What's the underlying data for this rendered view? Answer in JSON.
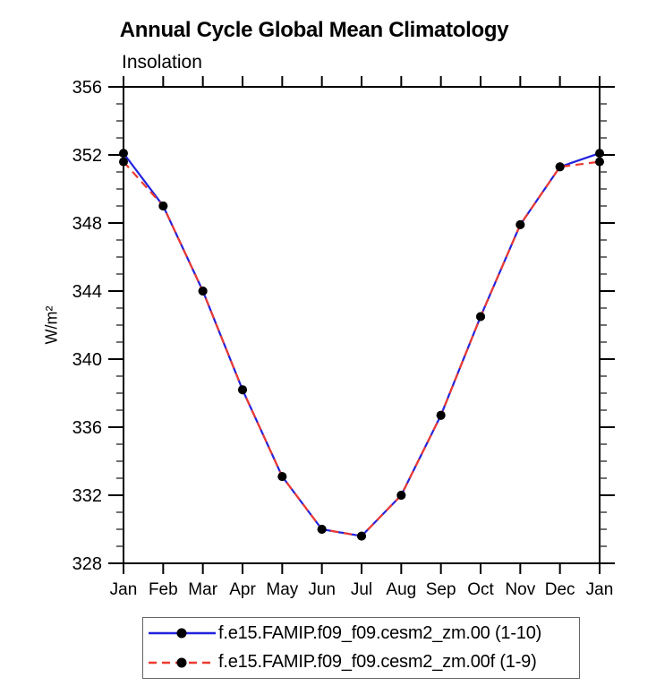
{
  "chart_data": {
    "type": "line",
    "title": "Annual Cycle Global Mean Climatology",
    "subtitle": "Insolation",
    "ylabel": "W/m²",
    "x_categories": [
      "Jan",
      "Feb",
      "Mar",
      "Apr",
      "May",
      "Jun",
      "Jul",
      "Aug",
      "Sep",
      "Oct",
      "Nov",
      "Dec",
      "Jan"
    ],
    "ylim": [
      328,
      356
    ],
    "yticks": [
      328,
      332,
      336,
      340,
      344,
      348,
      352,
      356
    ],
    "ytick_step": 4,
    "yminor_step": 1,
    "grid": "off",
    "frame_color": "#000000",
    "marker": "circle",
    "marker_color": "#000000",
    "legend_position": "bottom",
    "series": [
      {
        "name": "f.e15.FAMIP.f09_f09.cesm2_zm.00 (1-10)",
        "color": "#2222dd",
        "style": "solid",
        "values": [
          352.1,
          349.0,
          344.0,
          338.2,
          333.1,
          330.0,
          329.6,
          332.0,
          336.7,
          342.5,
          347.9,
          351.3,
          352.1
        ]
      },
      {
        "name": "f.e15.FAMIP.f09_f09.cesm2_zm.00f (1-9)",
        "color": "#ee3a2e",
        "style": "dashed",
        "values": [
          351.6,
          349.0,
          344.0,
          338.2,
          333.1,
          330.0,
          329.6,
          332.0,
          336.7,
          342.5,
          347.9,
          351.3,
          351.6
        ]
      }
    ]
  }
}
